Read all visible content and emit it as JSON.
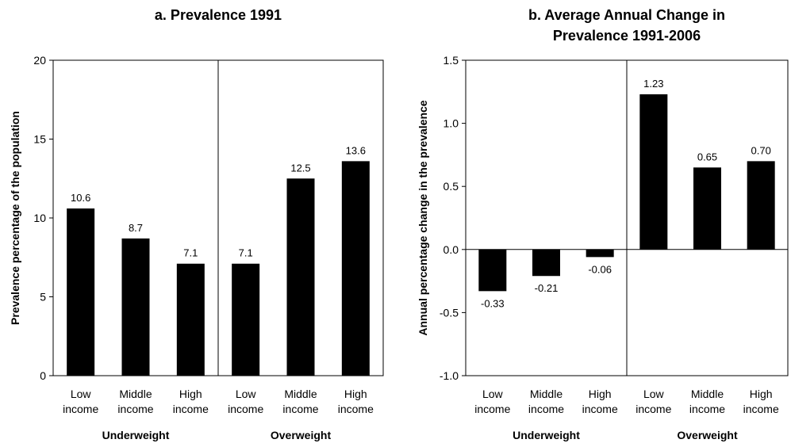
{
  "chart_data": [
    {
      "type": "bar",
      "title": "a. Prevalence 1991",
      "ylabel": "Prevalence percentage of the population",
      "ylim": [
        0,
        20
      ],
      "yticks": [
        "0",
        "5",
        "10",
        "15",
        "20"
      ],
      "categories": [
        [
          "Low",
          "income"
        ],
        [
          "Middle",
          "income"
        ],
        [
          "High",
          "income"
        ],
        [
          "Low",
          "income"
        ],
        [
          "Middle",
          "income"
        ],
        [
          "High",
          "income"
        ]
      ],
      "groups": [
        "Underweight",
        "Overweight"
      ],
      "values": [
        10.6,
        8.7,
        7.1,
        7.1,
        12.5,
        13.6
      ],
      "data_labels": [
        "10.6",
        "8.7",
        "7.1",
        "7.1",
        "12.5",
        "13.6"
      ],
      "bar_color": "#000000"
    },
    {
      "type": "bar",
      "title": [
        "b. Average Annual Change in",
        "Prevalence 1991-2006"
      ],
      "ylabel": "Annual percentage change in the prevalence",
      "ylim": [
        -1.0,
        1.5
      ],
      "yticks": [
        "-1.0",
        "-0.5",
        "0.0",
        "0.5",
        "1.0",
        "1.5"
      ],
      "categories": [
        [
          "Low",
          "income"
        ],
        [
          "Middle",
          "income"
        ],
        [
          "High",
          "income"
        ],
        [
          "Low",
          "income"
        ],
        [
          "Middle",
          "income"
        ],
        [
          "High",
          "income"
        ]
      ],
      "groups": [
        "Underweight",
        "Overweight"
      ],
      "values": [
        -0.33,
        -0.21,
        -0.06,
        1.23,
        0.65,
        0.7
      ],
      "data_labels": [
        "-0.33",
        "-0.21",
        "-0.06",
        "1.23",
        "0.65",
        "0.70"
      ],
      "bar_color": "#000000"
    }
  ]
}
